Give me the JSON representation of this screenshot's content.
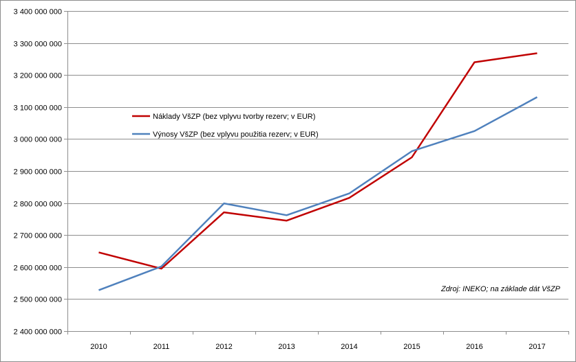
{
  "chart_data": {
    "type": "line",
    "categories": [
      "2010",
      "2011",
      "2012",
      "2013",
      "2014",
      "2015",
      "2016",
      "2017"
    ],
    "series": [
      {
        "name": "Náklady VšZP (bez vplyvu tvorby rezerv; v EUR)",
        "color": "#C00000",
        "values": [
          2646000000,
          2595000000,
          2771000000,
          2745000000,
          2816000000,
          2943000000,
          3240000000,
          3268000000
        ]
      },
      {
        "name": "Výnosy VšZP (bez vplyvu použitia rezerv; v EUR)",
        "color": "#4F81BD",
        "values": [
          2528000000,
          2602000000,
          2799000000,
          2762000000,
          2830000000,
          2962000000,
          3025000000,
          3131000000
        ]
      }
    ],
    "ylim": [
      2400000000,
      3400000000
    ],
    "yticks": [
      2400000000,
      2500000000,
      2600000000,
      2700000000,
      2800000000,
      2900000000,
      3000000000,
      3100000000,
      3200000000,
      3300000000,
      3400000000
    ],
    "ytick_labels": [
      "2 400 000 000",
      "2 500 000 000",
      "2 600 000 000",
      "2 700 000 000",
      "2 800 000 000",
      "2 900 000 000",
      "3 000 000 000",
      "3 100 000 000",
      "3 200 000 000",
      "3 300 000 000",
      "3 400 000 000"
    ],
    "grid": "horizontal",
    "legend_position": "upper-left",
    "annotation": "Zdroj: INEKO;  na základe dát VšZP",
    "title": "",
    "xlabel": "",
    "ylabel": ""
  }
}
